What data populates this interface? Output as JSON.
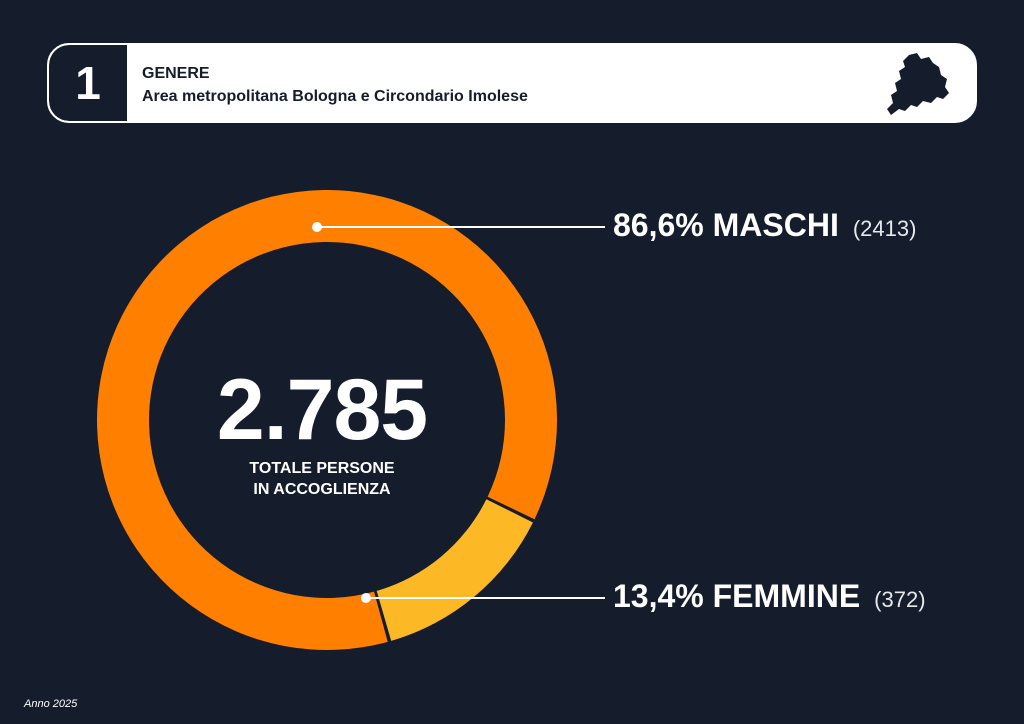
{
  "header": {
    "number": "1",
    "title": "GENERE",
    "subtitle": "Area metropolitana Bologna e Circondario Imolese"
  },
  "center": {
    "value": "2.785",
    "label_line1": "TOTALE PERSONE",
    "label_line2": "IN ACCOGLIENZA"
  },
  "callouts": {
    "maschi": {
      "label": "86,6% MASCHI",
      "count": "(2413)"
    },
    "femmine": {
      "label": "13,4% FEMMINE",
      "count": "(372)"
    }
  },
  "footer": {
    "text": "Anno 2025"
  },
  "colors": {
    "background": "#151d2c",
    "maschi": "#ff7f00",
    "femmine": "#fdb826",
    "text": "#ffffff"
  },
  "chart_data": {
    "type": "pie",
    "donut": true,
    "total": 2785,
    "series": [
      {
        "name": "MASCHI",
        "percent": 86.6,
        "value": 2413
      },
      {
        "name": "FEMMINE",
        "percent": 13.4,
        "value": 372
      }
    ]
  }
}
